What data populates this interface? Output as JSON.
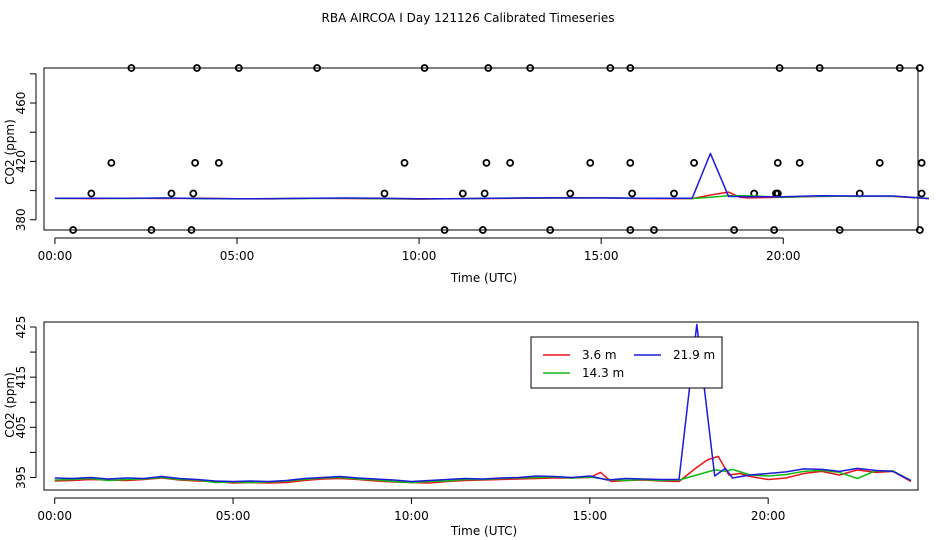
{
  "colors": {
    "red": "#e8141c",
    "green": "#14b814",
    "blue": "#1c1cd8",
    "axis": "#000000",
    "background": "#ffffff"
  },
  "chart_data": [
    {
      "id": "top",
      "type": "line",
      "title": "RBA AIRCOA I  Day 121126  Calibrated Timeseries",
      "xlabel": "Time (UTC)",
      "ylabel": "CO2 (ppm)",
      "x_unit": "hours UTC",
      "xlim": [
        -0.3,
        23.7
      ],
      "ylim": [
        373,
        484
      ],
      "x_ticks": [
        0,
        5,
        10,
        15,
        20
      ],
      "x_tick_labels": [
        "00:00",
        "05:00",
        "10:00",
        "15:00",
        "20:00"
      ],
      "y_ticks": [
        380,
        400,
        420,
        440,
        460,
        480
      ],
      "y_tick_labels": [
        "380",
        "",
        "420",
        "",
        "460",
        ""
      ],
      "grid": false,
      "legend": false,
      "scatter_points": [
        {
          "x": 0.5,
          "y": 373
        },
        {
          "x": 1.0,
          "y": 398
        },
        {
          "x": 1.55,
          "y": 419
        },
        {
          "x": 2.1,
          "y": 484
        },
        {
          "x": 2.65,
          "y": 373
        },
        {
          "x": 3.2,
          "y": 398
        },
        {
          "x": 3.75,
          "y": 373
        },
        {
          "x": 3.8,
          "y": 398
        },
        {
          "x": 3.85,
          "y": 419
        },
        {
          "x": 3.9,
          "y": 484
        },
        {
          "x": 4.5,
          "y": 419
        },
        {
          "x": 5.05,
          "y": 484
        },
        {
          "x": 7.2,
          "y": 484
        },
        {
          "x": 9.05,
          "y": 398
        },
        {
          "x": 9.6,
          "y": 419
        },
        {
          "x": 10.15,
          "y": 484
        },
        {
          "x": 10.7,
          "y": 373
        },
        {
          "x": 11.2,
          "y": 398
        },
        {
          "x": 11.75,
          "y": 373
        },
        {
          "x": 11.8,
          "y": 398
        },
        {
          "x": 11.85,
          "y": 419
        },
        {
          "x": 11.9,
          "y": 484
        },
        {
          "x": 12.5,
          "y": 419
        },
        {
          "x": 13.05,
          "y": 484
        },
        {
          "x": 13.6,
          "y": 373
        },
        {
          "x": 14.15,
          "y": 398
        },
        {
          "x": 14.7,
          "y": 419
        },
        {
          "x": 15.25,
          "y": 484
        },
        {
          "x": 15.8,
          "y": 373
        },
        {
          "x": 15.85,
          "y": 398
        },
        {
          "x": 15.8,
          "y": 419
        },
        {
          "x": 15.8,
          "y": 484
        },
        {
          "x": 16.45,
          "y": 373
        },
        {
          "x": 17.0,
          "y": 398
        },
        {
          "x": 17.55,
          "y": 419
        },
        {
          "x": 18.65,
          "y": 373
        },
        {
          "x": 19.2,
          "y": 398
        },
        {
          "x": 19.75,
          "y": 373
        },
        {
          "x": 19.8,
          "y": 398
        },
        {
          "x": 19.85,
          "y": 398
        },
        {
          "x": 19.85,
          "y": 419
        },
        {
          "x": 19.9,
          "y": 484
        },
        {
          "x": 20.45,
          "y": 419
        },
        {
          "x": 21.0,
          "y": 484
        },
        {
          "x": 21.55,
          "y": 373
        },
        {
          "x": 22.1,
          "y": 398
        },
        {
          "x": 22.65,
          "y": 419
        },
        {
          "x": 23.2,
          "y": 484
        },
        {
          "x": 23.75,
          "y": 373
        },
        {
          "x": 23.8,
          "y": 398
        },
        {
          "x": 23.8,
          "y": 419
        },
        {
          "x": 23.75,
          "y": 484
        }
      ],
      "series": [
        {
          "color_key": "red",
          "x": [
            0,
            1,
            2,
            3,
            4,
            5,
            6,
            7,
            8,
            9,
            10,
            11,
            12,
            13,
            14,
            15,
            16,
            17,
            17.5,
            18,
            18.5,
            18.8,
            19,
            20,
            21,
            22,
            23,
            24
          ],
          "y": [
            394.7,
            394.5,
            394.8,
            394.6,
            394.7,
            394.4,
            394.3,
            394.7,
            394.6,
            394.4,
            394.2,
            394.5,
            394.6,
            394.8,
            395.0,
            395.1,
            394.6,
            394.5,
            394.5,
            397.0,
            399.0,
            395.5,
            395.0,
            395.4,
            396.0,
            396.2,
            396.0,
            394.5
          ]
        },
        {
          "color_key": "green",
          "x": [
            0,
            1,
            2,
            3,
            4,
            5,
            6,
            7,
            8,
            9,
            10,
            11,
            12,
            13,
            14,
            15,
            16,
            17,
            17.5,
            18,
            18.5,
            19,
            20,
            21,
            22,
            23,
            24
          ],
          "y": [
            394.6,
            394.7,
            394.6,
            394.9,
            394.5,
            394.3,
            394.5,
            394.6,
            394.8,
            394.5,
            394.3,
            394.4,
            394.7,
            394.9,
            394.9,
            395.0,
            394.7,
            394.7,
            394.6,
            395.5,
            396.5,
            396.5,
            395.5,
            396.2,
            396.0,
            396.2,
            394.6
          ]
        },
        {
          "color_key": "blue",
          "x": [
            0,
            1,
            2,
            3,
            4,
            5,
            6,
            7,
            8,
            9,
            10,
            11,
            12,
            13,
            14,
            15,
            16,
            17,
            17.5,
            18,
            18.5,
            19,
            20,
            21,
            22,
            23,
            24
          ],
          "y": [
            394.8,
            394.8,
            394.7,
            394.9,
            394.6,
            394.4,
            394.5,
            394.7,
            394.9,
            394.7,
            394.4,
            394.4,
            394.7,
            395.0,
            395.0,
            395.0,
            394.8,
            394.7,
            394.7,
            425.5,
            396.0,
            395.8,
            395.8,
            396.4,
            396.3,
            396.3,
            394.6
          ]
        }
      ]
    },
    {
      "id": "bottom",
      "type": "line",
      "title": "",
      "xlabel": "Time (UTC)",
      "ylabel": "CO2 (ppm)",
      "x_unit": "hours UTC",
      "xlim": [
        -0.3,
        24.2
      ],
      "ylim": [
        392.5,
        426
      ],
      "x_ticks": [
        0,
        5,
        10,
        15,
        20
      ],
      "x_tick_labels": [
        "00:00",
        "05:00",
        "10:00",
        "15:00",
        "20:00"
      ],
      "y_ticks": [
        395,
        400,
        405,
        410,
        415,
        420,
        425
      ],
      "y_tick_labels": [
        "395",
        "",
        "405",
        "",
        "415",
        "",
        "425"
      ],
      "grid": false,
      "legend": true,
      "legend_placement": "top-right",
      "series": [
        {
          "name": "3.6 m",
          "color_key": "red",
          "x": [
            0,
            0.5,
            1,
            1.5,
            2,
            2.5,
            3,
            3.5,
            4,
            4.5,
            5,
            5.5,
            6,
            6.5,
            7,
            7.5,
            8,
            8.5,
            9,
            9.5,
            10,
            10.5,
            11,
            11.5,
            12,
            12.5,
            13,
            13.5,
            14,
            14.5,
            15,
            15.3,
            15.6,
            16,
            16.5,
            17,
            17.5,
            18,
            18.3,
            18.6,
            18.9,
            19.2,
            19.5,
            20,
            20.5,
            21,
            21.5,
            22,
            22.5,
            23,
            23.5,
            24
          ],
          "y": [
            394.3,
            394.4,
            394.6,
            394.5,
            394.4,
            394.6,
            394.9,
            394.5,
            394.3,
            394.2,
            393.9,
            394.0,
            393.9,
            394.0,
            394.4,
            394.7,
            394.8,
            394.6,
            394.3,
            394.1,
            394.0,
            393.9,
            394.2,
            394.4,
            394.5,
            394.6,
            394.7,
            394.8,
            394.9,
            394.9,
            395.0,
            396.0,
            394.2,
            394.4,
            394.5,
            394.3,
            394.2,
            397.0,
            398.5,
            399.2,
            395.5,
            395.8,
            395.2,
            394.6,
            394.9,
            395.8,
            396.2,
            395.5,
            396.5,
            396.0,
            396.2,
            394.2
          ]
        },
        {
          "name": "14.3 m",
          "color_key": "green",
          "x": [
            0,
            0.5,
            1,
            1.5,
            2,
            2.5,
            3,
            3.5,
            4,
            4.5,
            5,
            5.5,
            6,
            6.5,
            7,
            7.5,
            8,
            8.5,
            9,
            9.5,
            10,
            10.5,
            11,
            11.5,
            12,
            12.5,
            13,
            13.5,
            14,
            14.5,
            15,
            15.5,
            16,
            16.5,
            17,
            17.5,
            18,
            18.5,
            18.8,
            19,
            19.5,
            20,
            20.5,
            21,
            21.5,
            22,
            22.5,
            23,
            23.5,
            24
          ],
          "y": [
            394.5,
            394.6,
            394.8,
            394.4,
            394.6,
            394.7,
            395.0,
            394.6,
            394.5,
            394.0,
            394.1,
            394.0,
            394.1,
            394.3,
            394.6,
            394.9,
            395.0,
            394.7,
            394.5,
            394.2,
            394.0,
            394.2,
            394.3,
            394.6,
            394.6,
            394.8,
            394.9,
            395.0,
            395.1,
            394.9,
            395.1,
            394.6,
            394.4,
            394.6,
            394.4,
            394.5,
            395.5,
            396.5,
            396.2,
            396.6,
            395.5,
            395.3,
            395.6,
            396.2,
            396.4,
            396.0,
            394.8,
            396.3,
            396.3,
            394.4
          ]
        },
        {
          "name": "21.9 m",
          "color_key": "blue",
          "x": [
            0,
            0.5,
            1,
            1.5,
            2,
            2.5,
            3,
            3.5,
            4,
            4.5,
            5,
            5.5,
            6,
            6.5,
            7,
            7.5,
            8,
            8.5,
            9,
            9.5,
            10,
            10.5,
            11,
            11.5,
            12,
            12.5,
            13,
            13.5,
            14,
            14.5,
            15,
            15.5,
            16,
            16.5,
            17,
            17.5,
            18.0,
            18.5,
            18.8,
            19,
            19.5,
            20,
            20.5,
            21,
            21.5,
            22,
            22.5,
            23,
            23.5,
            24
          ],
          "y": [
            394.9,
            394.8,
            395.0,
            394.7,
            394.9,
            394.8,
            395.2,
            394.8,
            394.6,
            394.3,
            394.2,
            394.3,
            394.2,
            394.4,
            394.8,
            395.0,
            395.2,
            394.9,
            394.7,
            394.5,
            394.2,
            394.4,
            394.6,
            394.8,
            394.7,
            394.9,
            395.0,
            395.3,
            395.2,
            395.0,
            395.3,
            394.5,
            394.8,
            394.7,
            394.6,
            394.6,
            425.5,
            395.3,
            396.8,
            394.9,
            395.5,
            395.8,
            396.1,
            396.7,
            396.6,
            396.2,
            396.8,
            396.4,
            396.2,
            394.4
          ]
        }
      ]
    }
  ]
}
